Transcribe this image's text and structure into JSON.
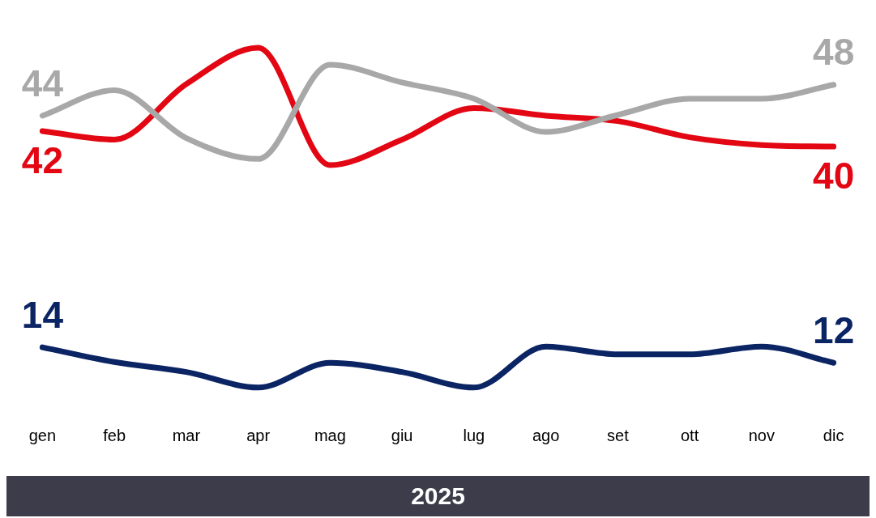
{
  "chart_data": {
    "type": "line",
    "xlabel": "2025",
    "categories": [
      "gen",
      "feb",
      "mar",
      "apr",
      "mag",
      "giu",
      "lug",
      "ago",
      "set",
      "ott",
      "nov",
      "dic"
    ],
    "series": [
      {
        "color": "#a8a8a8",
        "values": [
          44,
          47.3,
          41.1,
          38.4,
          50.6,
          48.3,
          46.2,
          41.9,
          44.1,
          46.2,
          46.2,
          48
        ],
        "value_labels": [
          "44",
          null,
          null,
          null,
          null,
          null,
          null,
          null,
          null,
          null,
          null,
          "48"
        ]
      },
      {
        "color": "#e30613",
        "values": [
          42,
          40.9,
          48.1,
          52.8,
          37.6,
          40.9,
          45,
          44,
          43.3,
          41.2,
          40.2,
          40
        ],
        "value_labels": [
          "42",
          null,
          null,
          null,
          null,
          null,
          null,
          null,
          null,
          null,
          null,
          "40"
        ]
      },
      {
        "color": "#0b2463",
        "values": [
          14,
          12.1,
          10.8,
          8.8,
          12,
          10.8,
          8.8,
          14.1,
          13.1,
          13.1,
          14.1,
          12
        ],
        "value_labels": [
          "14",
          null,
          null,
          null,
          null,
          null,
          null,
          null,
          null,
          null,
          null,
          "12"
        ]
      }
    ],
    "tick_labels": "x",
    "grid": false,
    "legend": false,
    "marker": "none",
    "line_style": "solid"
  }
}
